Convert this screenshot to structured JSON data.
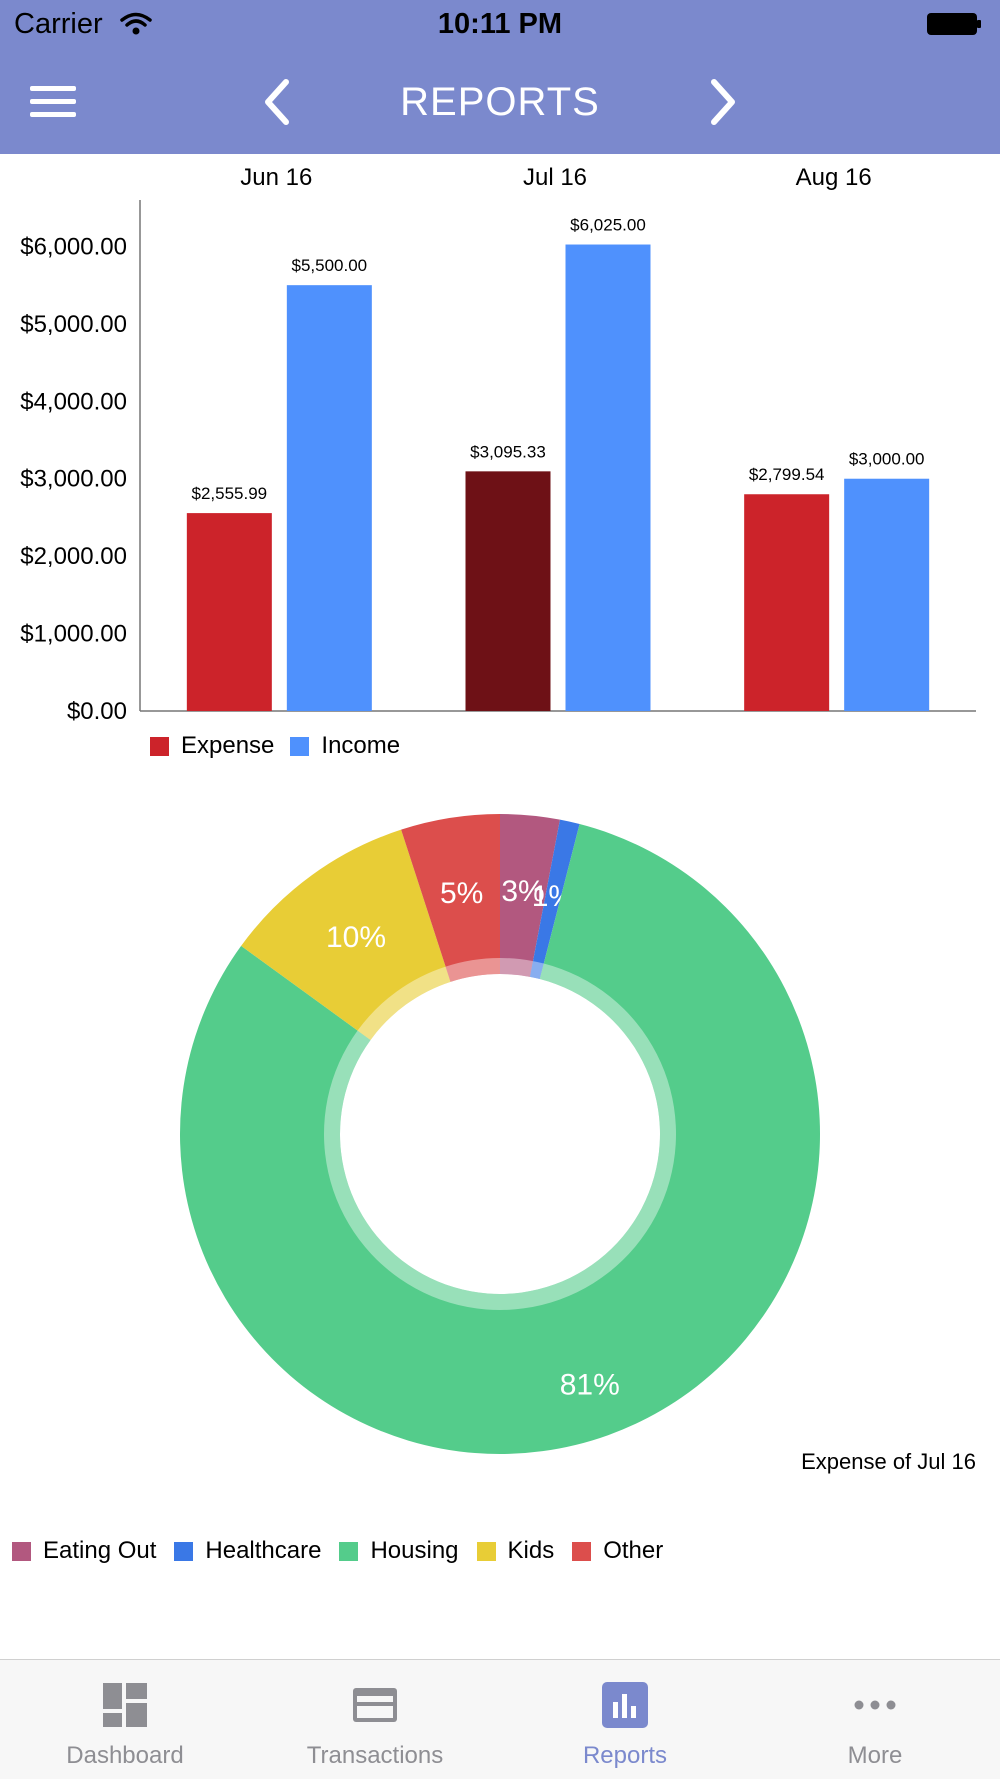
{
  "status_bar": {
    "carrier": "Carrier",
    "time": "10:11 PM"
  },
  "header": {
    "title": "REPORTS",
    "menu_icon": "hamburger-menu-icon",
    "prev_icon": "chevron-left-icon",
    "next_icon": "chevron-right-icon"
  },
  "colors": {
    "header": "#7b89cd",
    "expense": "#cc232a",
    "expense_selected": "#6e1116",
    "income": "#4f91fd",
    "eating_out": "#b2587f",
    "healthcare": "#3a78e6",
    "housing": "#54cc8b",
    "kids": "#e8cd36",
    "other": "#dc4e4c",
    "tab_active": "#7b89cd",
    "tab_inactive": "#8e8e93"
  },
  "chart_data": [
    {
      "type": "bar",
      "categories": [
        "Jun 16",
        "Jul 16",
        "Aug 16"
      ],
      "series": [
        {
          "name": "Expense",
          "values": [
            2555.99,
            3095.33,
            2799.54
          ],
          "labels": [
            "$2,555.99",
            "$3,095.33",
            "$2,799.54"
          ]
        },
        {
          "name": "Income",
          "values": [
            5500.0,
            6025.0,
            3000.0
          ],
          "labels": [
            "$5,500.00",
            "$6,025.00",
            "$3,000.00"
          ]
        }
      ],
      "selected_category": "Jul 16",
      "ylim": [
        0,
        6600
      ],
      "yticks": [
        0,
        1000,
        2000,
        3000,
        4000,
        5000,
        6000
      ],
      "ytick_labels": [
        "$0.00",
        "$1,000.00",
        "$2,000.00",
        "$3,000.00",
        "$4,000.00",
        "$5,000.00",
        "$6,000.00"
      ],
      "legend": [
        "Expense",
        "Income"
      ],
      "legend_position": "bottom-left",
      "grid": false
    },
    {
      "type": "pie",
      "style": "donut",
      "caption": "Expense of Jul 16",
      "categories": [
        "Eating Out",
        "Healthcare",
        "Housing",
        "Kids",
        "Other"
      ],
      "values": [
        3,
        1,
        81,
        10,
        5
      ],
      "labels": [
        "3%",
        "1%",
        "81%",
        "10%",
        "5%"
      ],
      "legend_position": "bottom-left"
    }
  ],
  "tabs": [
    {
      "label": "Dashboard",
      "icon": "dashboard-icon",
      "active": false
    },
    {
      "label": "Transactions",
      "icon": "card-icon",
      "active": false
    },
    {
      "label": "Reports",
      "icon": "bar-chart-icon",
      "active": true
    },
    {
      "label": "More",
      "icon": "more-dots-icon",
      "active": false
    }
  ]
}
